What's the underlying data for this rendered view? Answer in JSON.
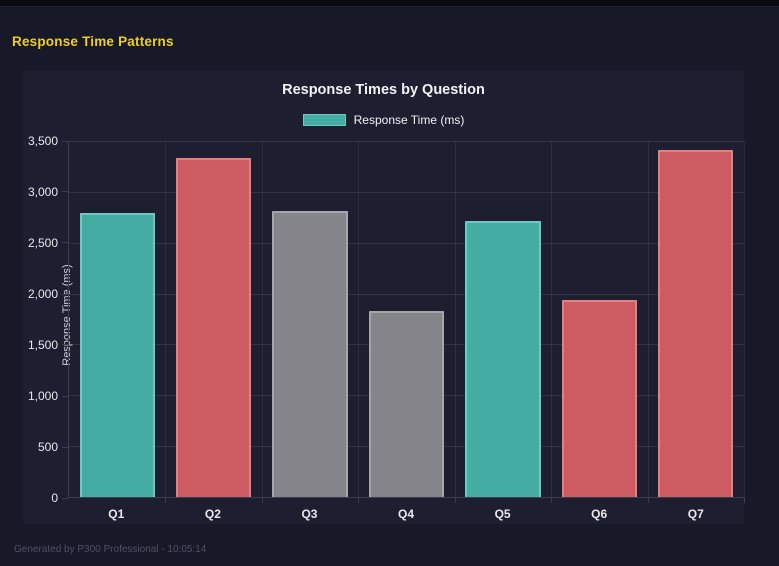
{
  "page": {
    "heading": "Response Time Patterns",
    "heading_color": "#f0ce21",
    "footer": "Generated by P300 Professional - 10:05:14",
    "background": "#171828",
    "panel_background": "#1d1f31"
  },
  "chart_data": {
    "type": "bar",
    "title": "Response Times by Question",
    "legend_label": "Response Time (ms)",
    "legend_position": "top",
    "xlabel": "",
    "ylabel": "Response Time (ms)",
    "categories": [
      "Q1",
      "Q2",
      "Q3",
      "Q4",
      "Q5",
      "Q6",
      "Q7"
    ],
    "values": [
      2790,
      3330,
      2810,
      1830,
      2710,
      1940,
      3410
    ],
    "bar_colors": [
      {
        "fill": "#45aca4",
        "border": "#6bcbc2"
      },
      {
        "fill": "#cd5c62",
        "border": "#e87e84"
      },
      {
        "fill": "#84848a",
        "border": "#a5a5ab"
      },
      {
        "fill": "#84848a",
        "border": "#a5a5ab"
      },
      {
        "fill": "#45aca4",
        "border": "#6bcbc2"
      },
      {
        "fill": "#cd5c62",
        "border": "#e87e84"
      },
      {
        "fill": "#cd5c62",
        "border": "#e87e84"
      }
    ],
    "legend_swatch": {
      "fill": "#45aca4",
      "border": "#6bcbc2"
    },
    "ylim": [
      0,
      3500
    ],
    "ytick_step": 500,
    "grid": true
  }
}
